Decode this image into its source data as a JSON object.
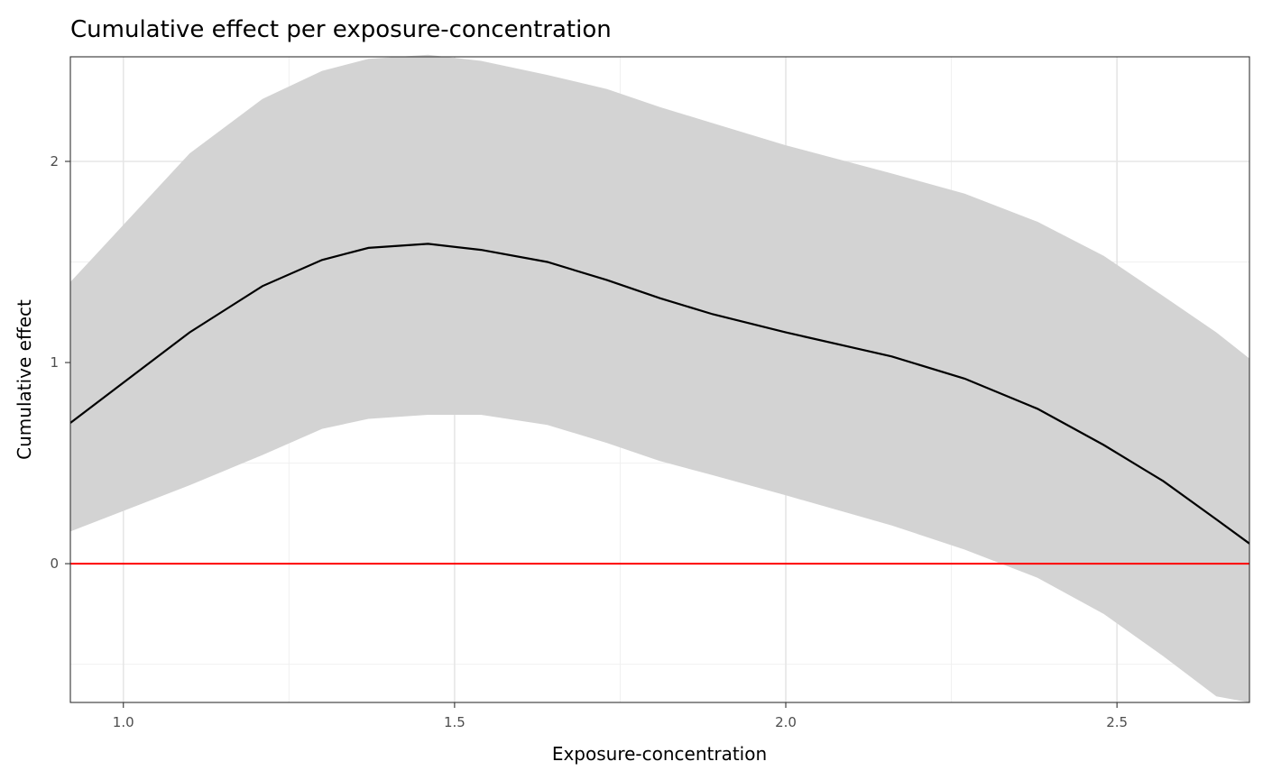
{
  "chart_data": {
    "type": "line",
    "title": "Cumulative effect per exposure-concentration",
    "xlabel": "Exposure-concentration",
    "ylabel": "Cumulative effect",
    "xlim": [
      0.92,
      2.7
    ],
    "ylim": [
      -0.69,
      2.52
    ],
    "x_ticks": [
      1.0,
      1.5,
      2.0,
      2.5
    ],
    "x_tick_labels": [
      "1.0",
      "1.5",
      "2.0",
      "2.5"
    ],
    "x_minor_ticks": [
      1.25,
      1.75,
      2.25
    ],
    "y_ticks": [
      0,
      1,
      2
    ],
    "y_tick_labels": [
      "0",
      "1",
      "2"
    ],
    "y_minor_ticks": [
      -0.5,
      0.5,
      1.5
    ],
    "grid": true,
    "reference_line": {
      "y": 0,
      "color": "#ff0000"
    },
    "series": [
      {
        "color": "#000000",
        "x": [
          0.92,
          1.1,
          1.21,
          1.3,
          1.37,
          1.46,
          1.54,
          1.64,
          1.73,
          1.81,
          1.89,
          2.0,
          2.16,
          2.27,
          2.38,
          2.48,
          2.57,
          2.65,
          2.7
        ],
        "y": [
          0.7,
          1.15,
          1.38,
          1.51,
          1.57,
          1.59,
          1.56,
          1.5,
          1.41,
          1.32,
          1.24,
          1.15,
          1.03,
          0.92,
          0.77,
          0.59,
          0.41,
          0.22,
          0.1
        ]
      }
    ],
    "band": {
      "fill": "#d3d3d3",
      "x": [
        0.92,
        1.1,
        1.21,
        1.3,
        1.37,
        1.46,
        1.54,
        1.64,
        1.73,
        1.81,
        1.89,
        2.0,
        2.16,
        2.27,
        2.38,
        2.48,
        2.57,
        2.65,
        2.7
      ],
      "lower": [
        0.16,
        0.39,
        0.54,
        0.67,
        0.72,
        0.74,
        0.74,
        0.69,
        0.6,
        0.51,
        0.44,
        0.34,
        0.19,
        0.07,
        -0.07,
        -0.25,
        -0.46,
        -0.66,
        -0.69
      ],
      "upper": [
        1.4,
        2.04,
        2.31,
        2.45,
        2.51,
        2.53,
        2.5,
        2.43,
        2.36,
        2.27,
        2.19,
        2.08,
        1.94,
        1.84,
        1.7,
        1.53,
        1.33,
        1.15,
        1.02
      ]
    }
  }
}
